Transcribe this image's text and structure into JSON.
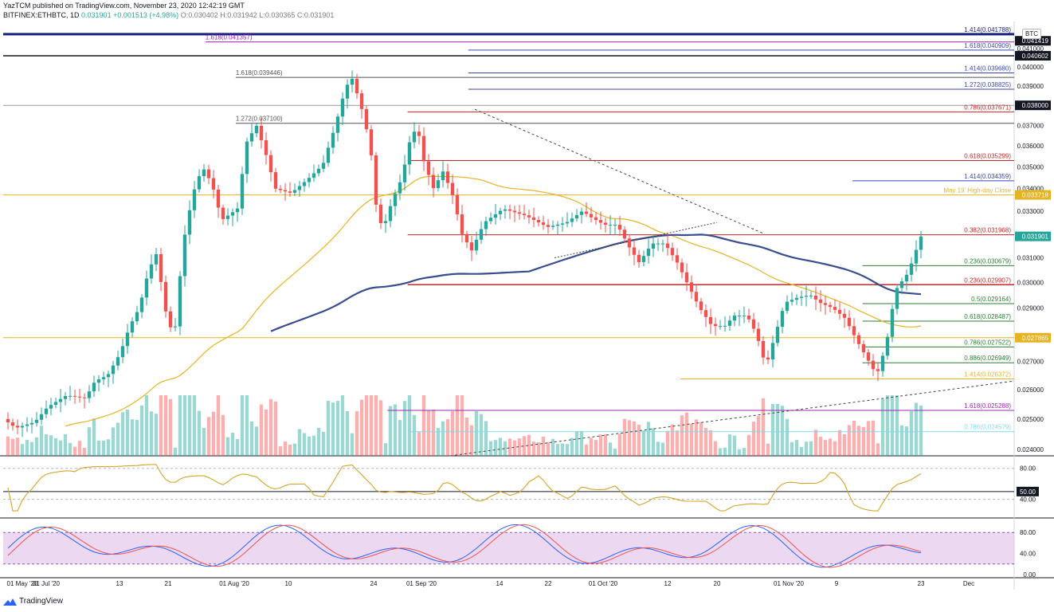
{
  "header": {
    "publish_line": "YazTCM published on TradingView.com, November 23, 2020 12:42:19 GMT",
    "symbol": "BITFINEX:ETHBTC, 1D",
    "last": "0.031901",
    "change": "+0.001513 (+4.98%)",
    "open": "O:0.030402",
    "high": "H:0.031942",
    "low": "L:0.030365",
    "close": "C:0.031901"
  },
  "footer": {
    "brand": "TradingView"
  },
  "currency_badge": "BTC",
  "colors": {
    "up": "#26a69a",
    "down": "#ef5350",
    "ma_fast": "#e6b422",
    "ma_slow": "#3a4d8f",
    "rsi": "#d4a52a",
    "stoch_k": "#2962ff",
    "stoch_d": "#ef5350",
    "stoch_band": "#e1bee7"
  },
  "chart_data": {
    "type": "candlestick",
    "title": "",
    "xlabel": "",
    "ylabel": "",
    "y_scale": "log",
    "ylim": [
      0.0238,
      0.0425
    ],
    "x_ticks": [
      "01 May '20",
      "01 Jul '20",
      "13",
      "21",
      "01 Aug '20",
      "10",
      "24",
      "01 Sep '20",
      "14",
      "22",
      "01 Oct '20",
      "12",
      "20",
      "01 Nov '20",
      "9",
      "23",
      "Dec"
    ],
    "y_ticks": [
      "0.041000",
      "0.040000",
      "0.039000",
      "0.037000",
      "0.036000",
      "0.035000",
      "0.034000",
      "0.033000",
      "0.031000",
      "0.030000",
      "0.029000",
      "0.027000",
      "0.026000",
      "0.025000",
      "0.024000"
    ],
    "price_badges": [
      {
        "text": "0.041419",
        "value": 0.041419,
        "color": "#131722"
      },
      {
        "text": "0.040602",
        "value": 0.040602,
        "color": "#131722"
      },
      {
        "text": "0.038000",
        "value": 0.038,
        "color": "#131722"
      },
      {
        "text": "0.033718",
        "value": 0.033718,
        "color": "#e6b422"
      },
      {
        "text": "0.031901",
        "value": 0.031901,
        "color": "#26a69a"
      },
      {
        "text": "0.027865",
        "value": 0.027865,
        "color": "#e6b422"
      }
    ],
    "levels": [
      {
        "label": "1.414(0.041788)",
        "value": 0.041788,
        "color": "#1a237e",
        "start": 0.0,
        "width": 3
      },
      {
        "label": "1.618(0.041357)",
        "value": 0.041357,
        "color": "#9c27b0",
        "start": 0.2,
        "width": 1
      },
      {
        "label": "1.618(0.040909)",
        "value": 0.040909,
        "color": "#3949ab",
        "start": 0.46,
        "width": 1
      },
      {
        "label": "",
        "value": 0.040602,
        "color": "#131722",
        "start": 0.0,
        "width": 1.5
      },
      {
        "label": "1.618(0.039446)",
        "value": 0.039446,
        "color": "#555555",
        "start": 0.23,
        "width": 1
      },
      {
        "label": "1.414(0.039680)",
        "value": 0.03968,
        "color": "#3949ab",
        "start": 0.46,
        "width": 1
      },
      {
        "label": "1.272(0.038825)",
        "value": 0.038825,
        "color": "#3949ab",
        "start": 0.46,
        "width": 1
      },
      {
        "label": "",
        "value": 0.038,
        "color": "#999999",
        "start": 0.0,
        "width": 1
      },
      {
        "label": "0.786(0.037671)",
        "value": 0.037671,
        "color": "#c62828",
        "start": 0.4,
        "width": 1
      },
      {
        "label": "1.272(0.037100)",
        "value": 0.0371,
        "color": "#555555",
        "start": 0.23,
        "width": 1
      },
      {
        "label": "0.618(0.035299)",
        "value": 0.035299,
        "color": "#c62828",
        "start": 0.4,
        "width": 1
      },
      {
        "label": "1.414(0.034359)",
        "value": 0.034359,
        "color": "#3949ab",
        "start": 0.84,
        "width": 1
      },
      {
        "label": "May 19' High-day Close",
        "value": 0.033718,
        "color": "#e6b422",
        "start": 0.0,
        "width": 1
      },
      {
        "label": "0.382(0.031968)",
        "value": 0.031968,
        "color": "#c62828",
        "start": 0.4,
        "width": 1
      },
      {
        "label": "0.236(0.030679)",
        "value": 0.030679,
        "color": "#2e7d32",
        "start": 0.85,
        "width": 1
      },
      {
        "label": "0.236(0.029907)",
        "value": 0.029907,
        "color": "#c62828",
        "start": 0.4,
        "width": 1.5
      },
      {
        "label": "0.5(0.029164)",
        "value": 0.029164,
        "color": "#2e7d32",
        "start": 0.85,
        "width": 1
      },
      {
        "label": "0.618(0.028487)",
        "value": 0.028487,
        "color": "#2e7d32",
        "start": 0.85,
        "width": 1
      },
      {
        "label": "",
        "value": 0.027865,
        "color": "#e6b422",
        "start": 0.0,
        "width": 1
      },
      {
        "label": "0.786(0.027522)",
        "value": 0.027522,
        "color": "#2e7d32",
        "start": 0.85,
        "width": 1
      },
      {
        "label": "0.886(0.026949)",
        "value": 0.026949,
        "color": "#2e7d32",
        "start": 0.85,
        "width": 1
      },
      {
        "label": "1.414(0.026372)",
        "value": 0.026372,
        "color": "#e6b422",
        "start": 0.67,
        "width": 1
      },
      {
        "label": "1.618(0.025288)",
        "value": 0.025288,
        "color": "#9c27b0",
        "start": 0.38,
        "width": 1
      },
      {
        "label": "0.786(0.024579)",
        "value": 0.024579,
        "color": "#80deea",
        "start": 0.4,
        "width": 1
      }
    ],
    "candles_note": "approximate daily OHLC, 1 May 2020 to 23 Nov 2020",
    "rsi": {
      "ticks": [
        "80.00",
        "50.00",
        "40.00"
      ],
      "current": "50.00"
    },
    "stoch": {
      "ticks": [
        "80.00",
        "40.00",
        "0.00"
      ]
    }
  }
}
